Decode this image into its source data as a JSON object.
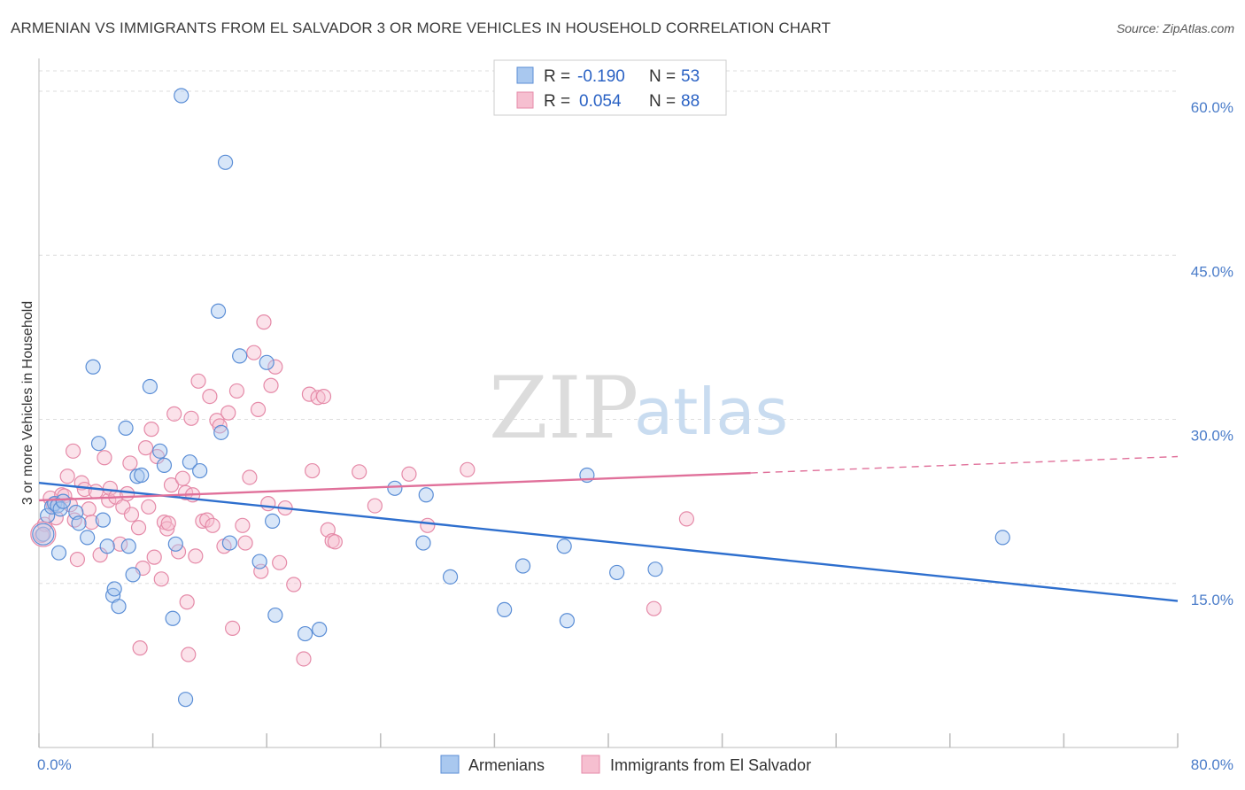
{
  "title": "ARMENIAN VS IMMIGRANTS FROM EL SALVADOR 3 OR MORE VEHICLES IN HOUSEHOLD CORRELATION CHART",
  "source": "Source: ZipAtlas.com",
  "watermark": {
    "zip": "ZIP",
    "atlas": "atlas"
  },
  "colors": {
    "blue_fill": "#a9c8ef",
    "blue_stroke": "#5b8ed6",
    "blue_line": "#2e6fce",
    "pink_fill": "#f6bfd0",
    "pink_stroke": "#e58aa8",
    "pink_line": "#e0709a",
    "tick": "#4a7cc9",
    "grid": "#dddddd"
  },
  "legend": {
    "rows": [
      {
        "r_label": "R =",
        "r_value": "-0.190",
        "n_label": "N =",
        "n_value": "53"
      },
      {
        "r_label": "R =",
        "r_value": "0.054",
        "n_label": "N =",
        "n_value": "88"
      }
    ]
  },
  "chart_data": {
    "type": "scatter",
    "ylabel": "3 or more Vehicles in Household",
    "xlim": [
      0,
      80
    ],
    "ylim": [
      0,
      63
    ],
    "x_tick_labels": [
      "0.0%",
      "80.0%"
    ],
    "y_ticks": [
      {
        "value": 15,
        "label": "15.0%"
      },
      {
        "value": 30,
        "label": "30.0%"
      },
      {
        "value": 45,
        "label": "45.0%"
      },
      {
        "value": 60,
        "label": "60.0%"
      }
    ],
    "grid": true,
    "legend_position": "top-center",
    "series": [
      {
        "name": "Armenians",
        "color": "blue",
        "trend": {
          "x": [
            0,
            80
          ],
          "y": [
            24.2,
            13.4
          ],
          "dashed_from": null
        },
        "points": [
          [
            0.3,
            19.5
          ],
          [
            0.6,
            21.2
          ],
          [
            0.9,
            22.0
          ],
          [
            1.1,
            22.3
          ],
          [
            1.3,
            22.1
          ],
          [
            1.5,
            21.8
          ],
          [
            1.7,
            22.5
          ],
          [
            1.4,
            17.8
          ],
          [
            2.6,
            21.5
          ],
          [
            2.8,
            20.5
          ],
          [
            3.4,
            19.2
          ],
          [
            3.8,
            34.8
          ],
          [
            4.2,
            27.8
          ],
          [
            4.5,
            20.8
          ],
          [
            4.8,
            18.4
          ],
          [
            5.2,
            13.9
          ],
          [
            5.3,
            14.5
          ],
          [
            5.6,
            12.9
          ],
          [
            6.1,
            29.2
          ],
          [
            6.3,
            18.4
          ],
          [
            6.6,
            15.8
          ],
          [
            6.9,
            24.8
          ],
          [
            7.2,
            24.9
          ],
          [
            7.8,
            33.0
          ],
          [
            8.5,
            27.1
          ],
          [
            8.8,
            25.8
          ],
          [
            9.4,
            11.8
          ],
          [
            9.6,
            18.6
          ],
          [
            10.0,
            59.6
          ],
          [
            10.3,
            4.4
          ],
          [
            10.6,
            26.1
          ],
          [
            11.3,
            25.3
          ],
          [
            12.6,
            39.9
          ],
          [
            12.8,
            28.8
          ],
          [
            13.1,
            53.5
          ],
          [
            13.4,
            18.7
          ],
          [
            14.1,
            35.8
          ],
          [
            15.5,
            17.0
          ],
          [
            16.0,
            35.2
          ],
          [
            16.4,
            20.7
          ],
          [
            16.6,
            12.1
          ],
          [
            18.7,
            10.4
          ],
          [
            19.7,
            10.8
          ],
          [
            25.0,
            23.7
          ],
          [
            27.0,
            18.7
          ],
          [
            27.2,
            23.1
          ],
          [
            28.9,
            15.6
          ],
          [
            32.7,
            12.6
          ],
          [
            34.0,
            16.6
          ],
          [
            36.9,
            18.4
          ],
          [
            37.1,
            11.6
          ],
          [
            38.5,
            24.9
          ],
          [
            40.6,
            16.0
          ],
          [
            43.3,
            16.3
          ],
          [
            67.7,
            19.2
          ]
        ]
      },
      {
        "name": "Immigrants from El Salvador",
        "color": "pink",
        "trend": {
          "x": [
            0,
            80
          ],
          "y": [
            22.6,
            26.6
          ],
          "dashed_from": 50
        },
        "points": [
          [
            0.2,
            19.4
          ],
          [
            0.4,
            20.4
          ],
          [
            0.8,
            22.8
          ],
          [
            1.0,
            22.2
          ],
          [
            1.2,
            21.0
          ],
          [
            1.6,
            23.1
          ],
          [
            1.8,
            23.0
          ],
          [
            2.0,
            24.8
          ],
          [
            2.2,
            22.2
          ],
          [
            2.4,
            27.1
          ],
          [
            2.5,
            20.8
          ],
          [
            2.7,
            17.2
          ],
          [
            3.0,
            24.2
          ],
          [
            3.2,
            23.6
          ],
          [
            3.5,
            21.8
          ],
          [
            3.7,
            20.6
          ],
          [
            4.0,
            23.4
          ],
          [
            4.3,
            17.6
          ],
          [
            4.6,
            26.5
          ],
          [
            4.9,
            22.6
          ],
          [
            5.0,
            23.7
          ],
          [
            5.4,
            22.9
          ],
          [
            5.7,
            18.6
          ],
          [
            5.9,
            22.0
          ],
          [
            6.2,
            23.2
          ],
          [
            6.4,
            26.0
          ],
          [
            6.5,
            21.3
          ],
          [
            7.0,
            20.1
          ],
          [
            7.1,
            9.1
          ],
          [
            7.3,
            16.4
          ],
          [
            7.5,
            27.4
          ],
          [
            7.7,
            22.0
          ],
          [
            7.9,
            29.1
          ],
          [
            8.1,
            17.4
          ],
          [
            8.3,
            26.6
          ],
          [
            8.6,
            15.4
          ],
          [
            8.8,
            20.6
          ],
          [
            9.0,
            20.0
          ],
          [
            9.1,
            20.5
          ],
          [
            9.3,
            24.0
          ],
          [
            9.5,
            30.5
          ],
          [
            9.8,
            17.9
          ],
          [
            10.1,
            24.6
          ],
          [
            10.3,
            23.3
          ],
          [
            10.4,
            13.3
          ],
          [
            10.5,
            8.5
          ],
          [
            10.7,
            30.1
          ],
          [
            10.8,
            23.1
          ],
          [
            11.0,
            17.5
          ],
          [
            11.2,
            33.5
          ],
          [
            11.5,
            20.7
          ],
          [
            11.8,
            20.8
          ],
          [
            12.0,
            32.1
          ],
          [
            12.2,
            20.3
          ],
          [
            12.5,
            29.9
          ],
          [
            12.7,
            29.4
          ],
          [
            13.0,
            18.4
          ],
          [
            13.3,
            30.6
          ],
          [
            13.6,
            10.9
          ],
          [
            13.9,
            32.6
          ],
          [
            14.3,
            20.3
          ],
          [
            14.5,
            18.7
          ],
          [
            14.8,
            24.7
          ],
          [
            15.1,
            36.1
          ],
          [
            15.4,
            30.9
          ],
          [
            15.6,
            16.1
          ],
          [
            15.8,
            38.9
          ],
          [
            16.1,
            22.3
          ],
          [
            16.3,
            33.1
          ],
          [
            16.6,
            34.8
          ],
          [
            16.9,
            16.9
          ],
          [
            17.3,
            21.9
          ],
          [
            17.9,
            14.9
          ],
          [
            18.6,
            8.1
          ],
          [
            19.0,
            32.3
          ],
          [
            19.2,
            25.3
          ],
          [
            19.6,
            32.0
          ],
          [
            20.0,
            32.1
          ],
          [
            20.3,
            19.9
          ],
          [
            20.6,
            18.9
          ],
          [
            20.8,
            18.8
          ],
          [
            22.5,
            25.2
          ],
          [
            23.6,
            22.1
          ],
          [
            26.0,
            25.0
          ],
          [
            27.3,
            20.3
          ],
          [
            30.1,
            25.4
          ],
          [
            43.2,
            12.7
          ],
          [
            45.5,
            20.9
          ]
        ]
      }
    ]
  }
}
